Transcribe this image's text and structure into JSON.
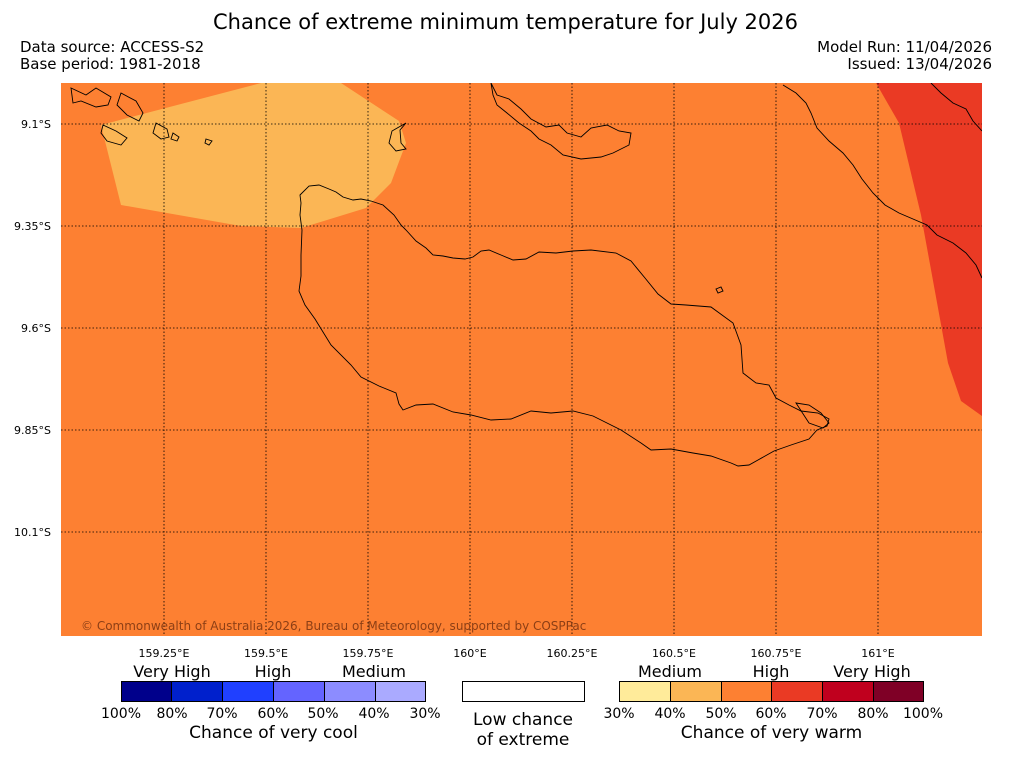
{
  "title": "Chance of extreme minimum temperature for July 2026",
  "data_source": "Data source: ACCESS-S2",
  "base_period": "Base period: 1981-2018",
  "model_run": "Model Run: 11/04/2026",
  "issued": "Issued: 13/04/2026",
  "copyright": "© Commonwealth of Australia 2026, Bureau of Meteorology, supported by COSPPac",
  "map": {
    "lat_labels": [
      "9.1°S",
      "9.35°S",
      "9.6°S",
      "9.85°S",
      "10.1°S"
    ],
    "lon_labels": [
      "159.25°E",
      "159.5°E",
      "159.75°E",
      "160°E",
      "160.25°E",
      "160.5°E",
      "160.75°E",
      "161°E"
    ],
    "background_category": "High (50-60% chance of very warm)",
    "regions": [
      {
        "category": "Medium (40-50% chance of very warm)",
        "location": "north-west"
      },
      {
        "category": "High (60-70% chance of very warm)",
        "location": "far east"
      }
    ]
  },
  "legend": {
    "cool": {
      "title": "Chance of very cool",
      "categories": [
        "Very High",
        "High",
        "Medium"
      ],
      "percents": [
        "100%",
        "80%",
        "70%",
        "60%",
        "50%",
        "40%",
        "30%"
      ],
      "colors": [
        "#00008b",
        "#0020cc",
        "#2040ff",
        "#6464ff",
        "#8c8cff",
        "#aaaaff"
      ]
    },
    "neutral": {
      "title_line1": "Low chance",
      "title_line2": "of extreme",
      "color": "#ffffff"
    },
    "warm": {
      "title": "Chance of very warm",
      "categories": [
        "Medium",
        "High",
        "Very High"
      ],
      "percents": [
        "30%",
        "40%",
        "50%",
        "60%",
        "70%",
        "80%",
        "100%"
      ],
      "colors": [
        "#ffeb9a",
        "#fbb655",
        "#fd8032",
        "#ea3a24",
        "#c0001e",
        "#7f0026"
      ]
    }
  }
}
